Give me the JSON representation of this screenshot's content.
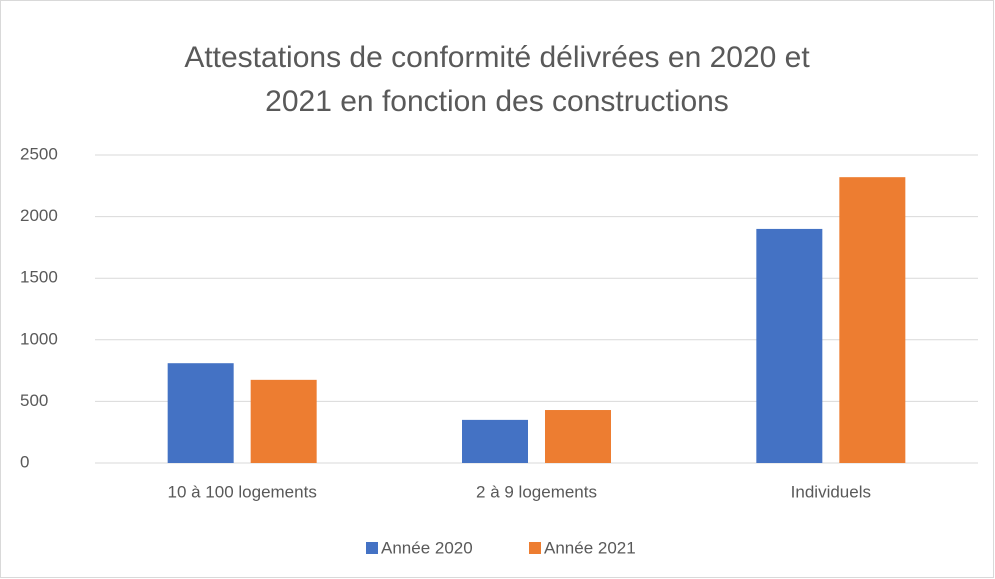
{
  "chart_data": {
    "type": "bar",
    "title": "Attestations de conformité délivrées en 2020 et 2021 en fonction des constructions",
    "categories": [
      "10 à 100 logements",
      "2 à 9 logements",
      "Individuels"
    ],
    "series": [
      {
        "name": "Année 2020",
        "color": "#4472c4",
        "values": [
          810,
          350,
          1900
        ]
      },
      {
        "name": "Année 2021",
        "color": "#ed7d31",
        "values": [
          675,
          430,
          2320
        ]
      }
    ],
    "ylim": [
      0,
      2500
    ],
    "yticks": [
      0,
      500,
      1000,
      1500,
      2000,
      2500
    ],
    "grid": true,
    "legend": "bottom"
  }
}
